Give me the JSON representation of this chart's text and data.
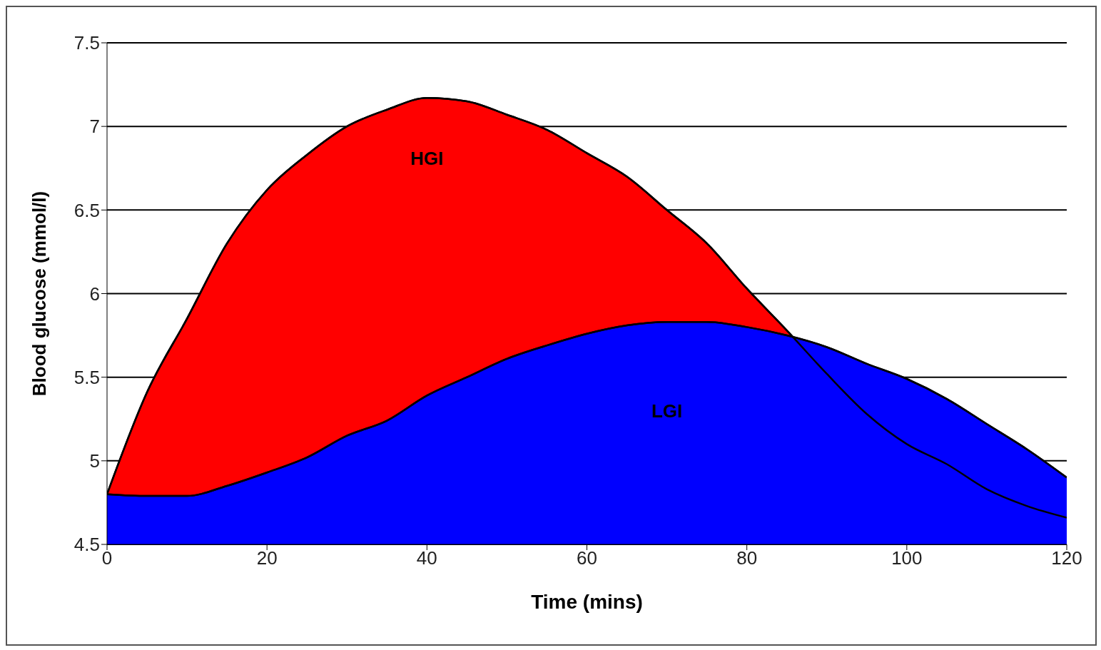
{
  "chart_data": {
    "type": "area",
    "xlabel": "Time (mins)",
    "ylabel": "Blood glucose (mmol/l)",
    "x": [
      0,
      5,
      10,
      15,
      20,
      25,
      30,
      35,
      40,
      45,
      50,
      55,
      60,
      65,
      70,
      75,
      80,
      85,
      90,
      95,
      100,
      105,
      110,
      115,
      120
    ],
    "series": [
      {
        "name": "HGI",
        "color": "#ff0000",
        "values": [
          4.8,
          5.41,
          5.85,
          6.3,
          6.62,
          6.83,
          7.0,
          7.1,
          7.17,
          7.15,
          7.07,
          6.98,
          6.84,
          6.7,
          6.5,
          6.3,
          6.03,
          5.78,
          5.52,
          5.28,
          5.1,
          4.98,
          4.83,
          4.73,
          4.66
        ]
      },
      {
        "name": "LGI",
        "color": "#0000ff",
        "values": [
          4.8,
          4.79,
          4.79,
          4.85,
          4.93,
          5.02,
          5.15,
          5.24,
          5.39,
          5.5,
          5.61,
          5.69,
          5.76,
          5.81,
          5.83,
          5.83,
          5.8,
          5.75,
          5.68,
          5.58,
          5.49,
          5.37,
          5.22,
          5.07,
          4.9
        ]
      }
    ],
    "xlim": [
      0,
      120
    ],
    "xticks": [
      0,
      20,
      40,
      60,
      80,
      100,
      120
    ],
    "ylim": [
      4.5,
      7.5
    ],
    "yticks": [
      4.5,
      5,
      5.5,
      6,
      6.5,
      7,
      7.5
    ],
    "grid": "y",
    "legend": false
  }
}
